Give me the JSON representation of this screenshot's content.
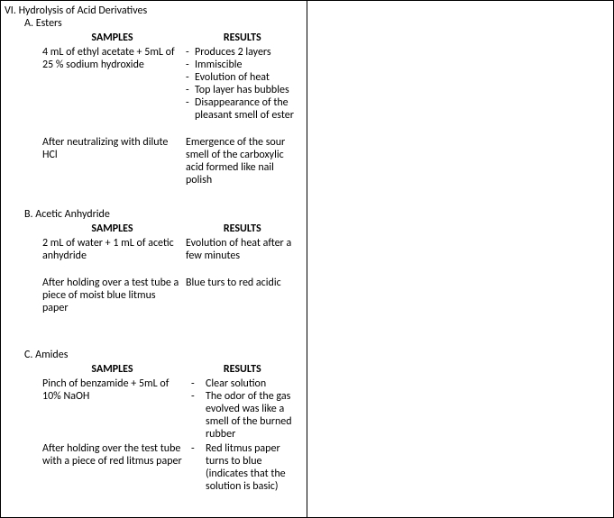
{
  "title": "VI. Hydrolysis of Acid Derivatives",
  "sections": [
    {
      "label": "A.   Esters",
      "samples_hdr": "SAMPLES",
      "results_hdr": "RESULTS",
      "rows": [
        {
          "sample": "4 mL of ethyl acetate + 5mL of  25 %  sodium hydroxide",
          "result_items": [
            "Produces 2 layers",
            "Immiscible",
            "Evolution of heat",
            "Top layer has bubbles",
            "Disappearance of the pleasant smell of ester"
          ]
        },
        {
          "sample": "After neutralizing with dilute HCl",
          "result_text": "Emergence of the sour smell of the carboxylic acid formed like nail polish"
        }
      ]
    },
    {
      "label": "B.   Acetic Anhydride",
      "samples_hdr": "SAMPLES",
      "results_hdr": "RESULTS",
      "rows": [
        {
          "sample": "2 mL of water + 1 mL of acetic anhydride",
          "result_text": "Evolution of heat after a few minutes"
        },
        {
          "sample": "After holding over a test tube a piece of moist blue litmus paper",
          "result_text": "Blue turs to red acidic"
        }
      ]
    },
    {
      "label": "C.   Amides",
      "samples_hdr": "SAMPLES",
      "results_hdr": "RESULTS",
      "rows": [
        {
          "sample": "Pinch of benzamide + 5mL of 10% NaOH",
          "result_items": [
            "Clear solution",
            "The odor of the gas evolved was like a smell of the burned rubber"
          ]
        },
        {
          "sample": "After holding over the test tube with a piece of red litmus paper",
          "result_items": [
            "Red litmus paper turns to blue (indicates that the solution is basic)"
          ]
        }
      ]
    }
  ]
}
